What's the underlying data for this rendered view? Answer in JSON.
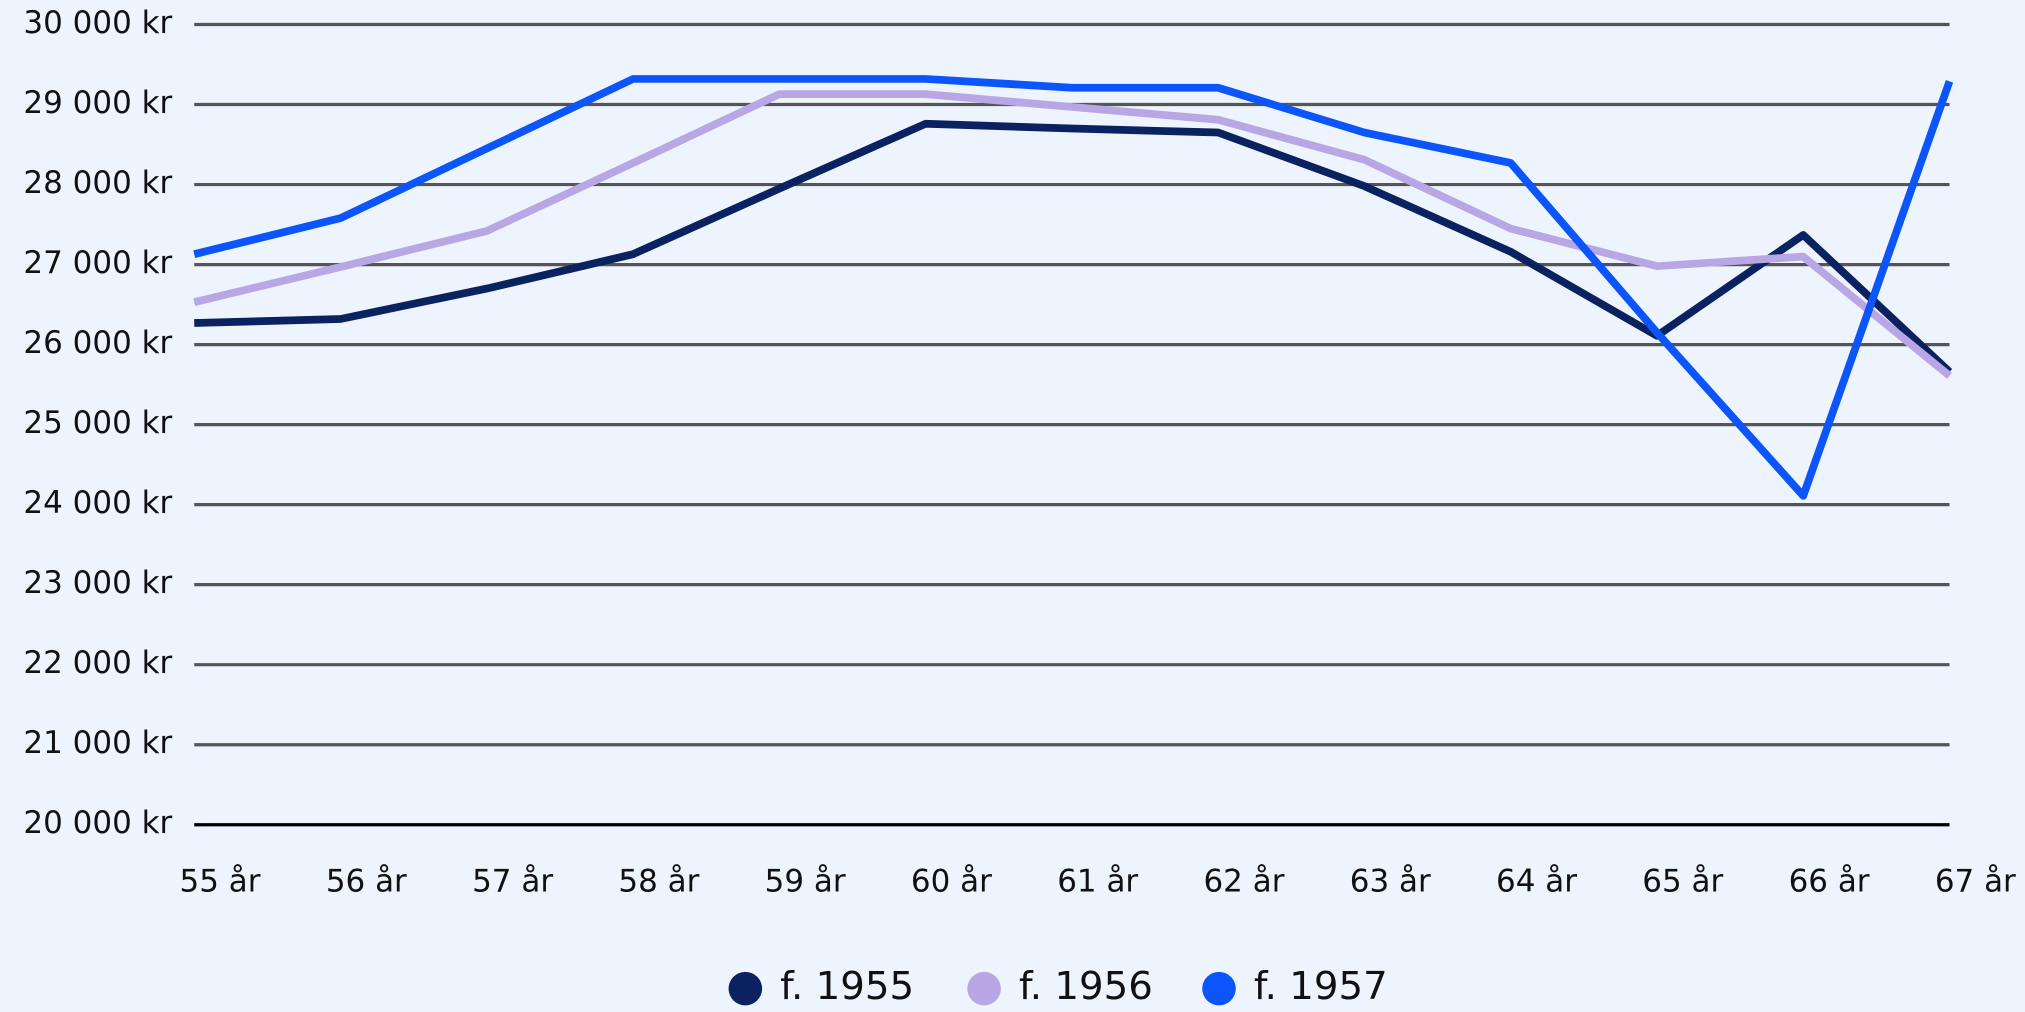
{
  "chart_data": {
    "type": "line",
    "categories": [
      "55 år",
      "56 år",
      "57 år",
      "58 år",
      "59 år",
      "60 år",
      "61 år",
      "62 år",
      "63 år",
      "64 år",
      "65 år",
      "66 år",
      "67 år"
    ],
    "series": [
      {
        "name": "f. 1955",
        "color": "#0b2260",
        "values": [
          26270,
          26320,
          26700,
          27130,
          27950,
          28760,
          28700,
          28650,
          27980,
          27160,
          26110,
          27370,
          25660
        ]
      },
      {
        "name": "f. 1956",
        "color": "#b9a6e4",
        "values": [
          26530,
          26970,
          27420,
          28270,
          29130,
          29130,
          28970,
          28810,
          28310,
          27450,
          26980,
          27100,
          25610
        ]
      },
      {
        "name": "f. 1957",
        "color": "#0b55fb",
        "values": [
          27130,
          27580,
          28450,
          29320,
          29320,
          29320,
          29210,
          29210,
          28650,
          28270,
          26150,
          24110,
          29290
        ]
      }
    ],
    "ylim": [
      20000,
      30000
    ],
    "yticks": [
      {
        "value": 20000,
        "label": "20 000 kr"
      },
      {
        "value": 21000,
        "label": "21 000 kr"
      },
      {
        "value": 22000,
        "label": "22 000 kr"
      },
      {
        "value": 23000,
        "label": "23 000 kr"
      },
      {
        "value": 24000,
        "label": "24 000 kr"
      },
      {
        "value": 25000,
        "label": "25 000 kr"
      },
      {
        "value": 26000,
        "label": "26 000 kr"
      },
      {
        "value": 27000,
        "label": "27 000 kr"
      },
      {
        "value": 28000,
        "label": "28 000 kr"
      },
      {
        "value": 29000,
        "label": "29 000 kr"
      },
      {
        "value": 30000,
        "label": "30 000 kr"
      }
    ],
    "grid": true,
    "legend": "bottom"
  }
}
